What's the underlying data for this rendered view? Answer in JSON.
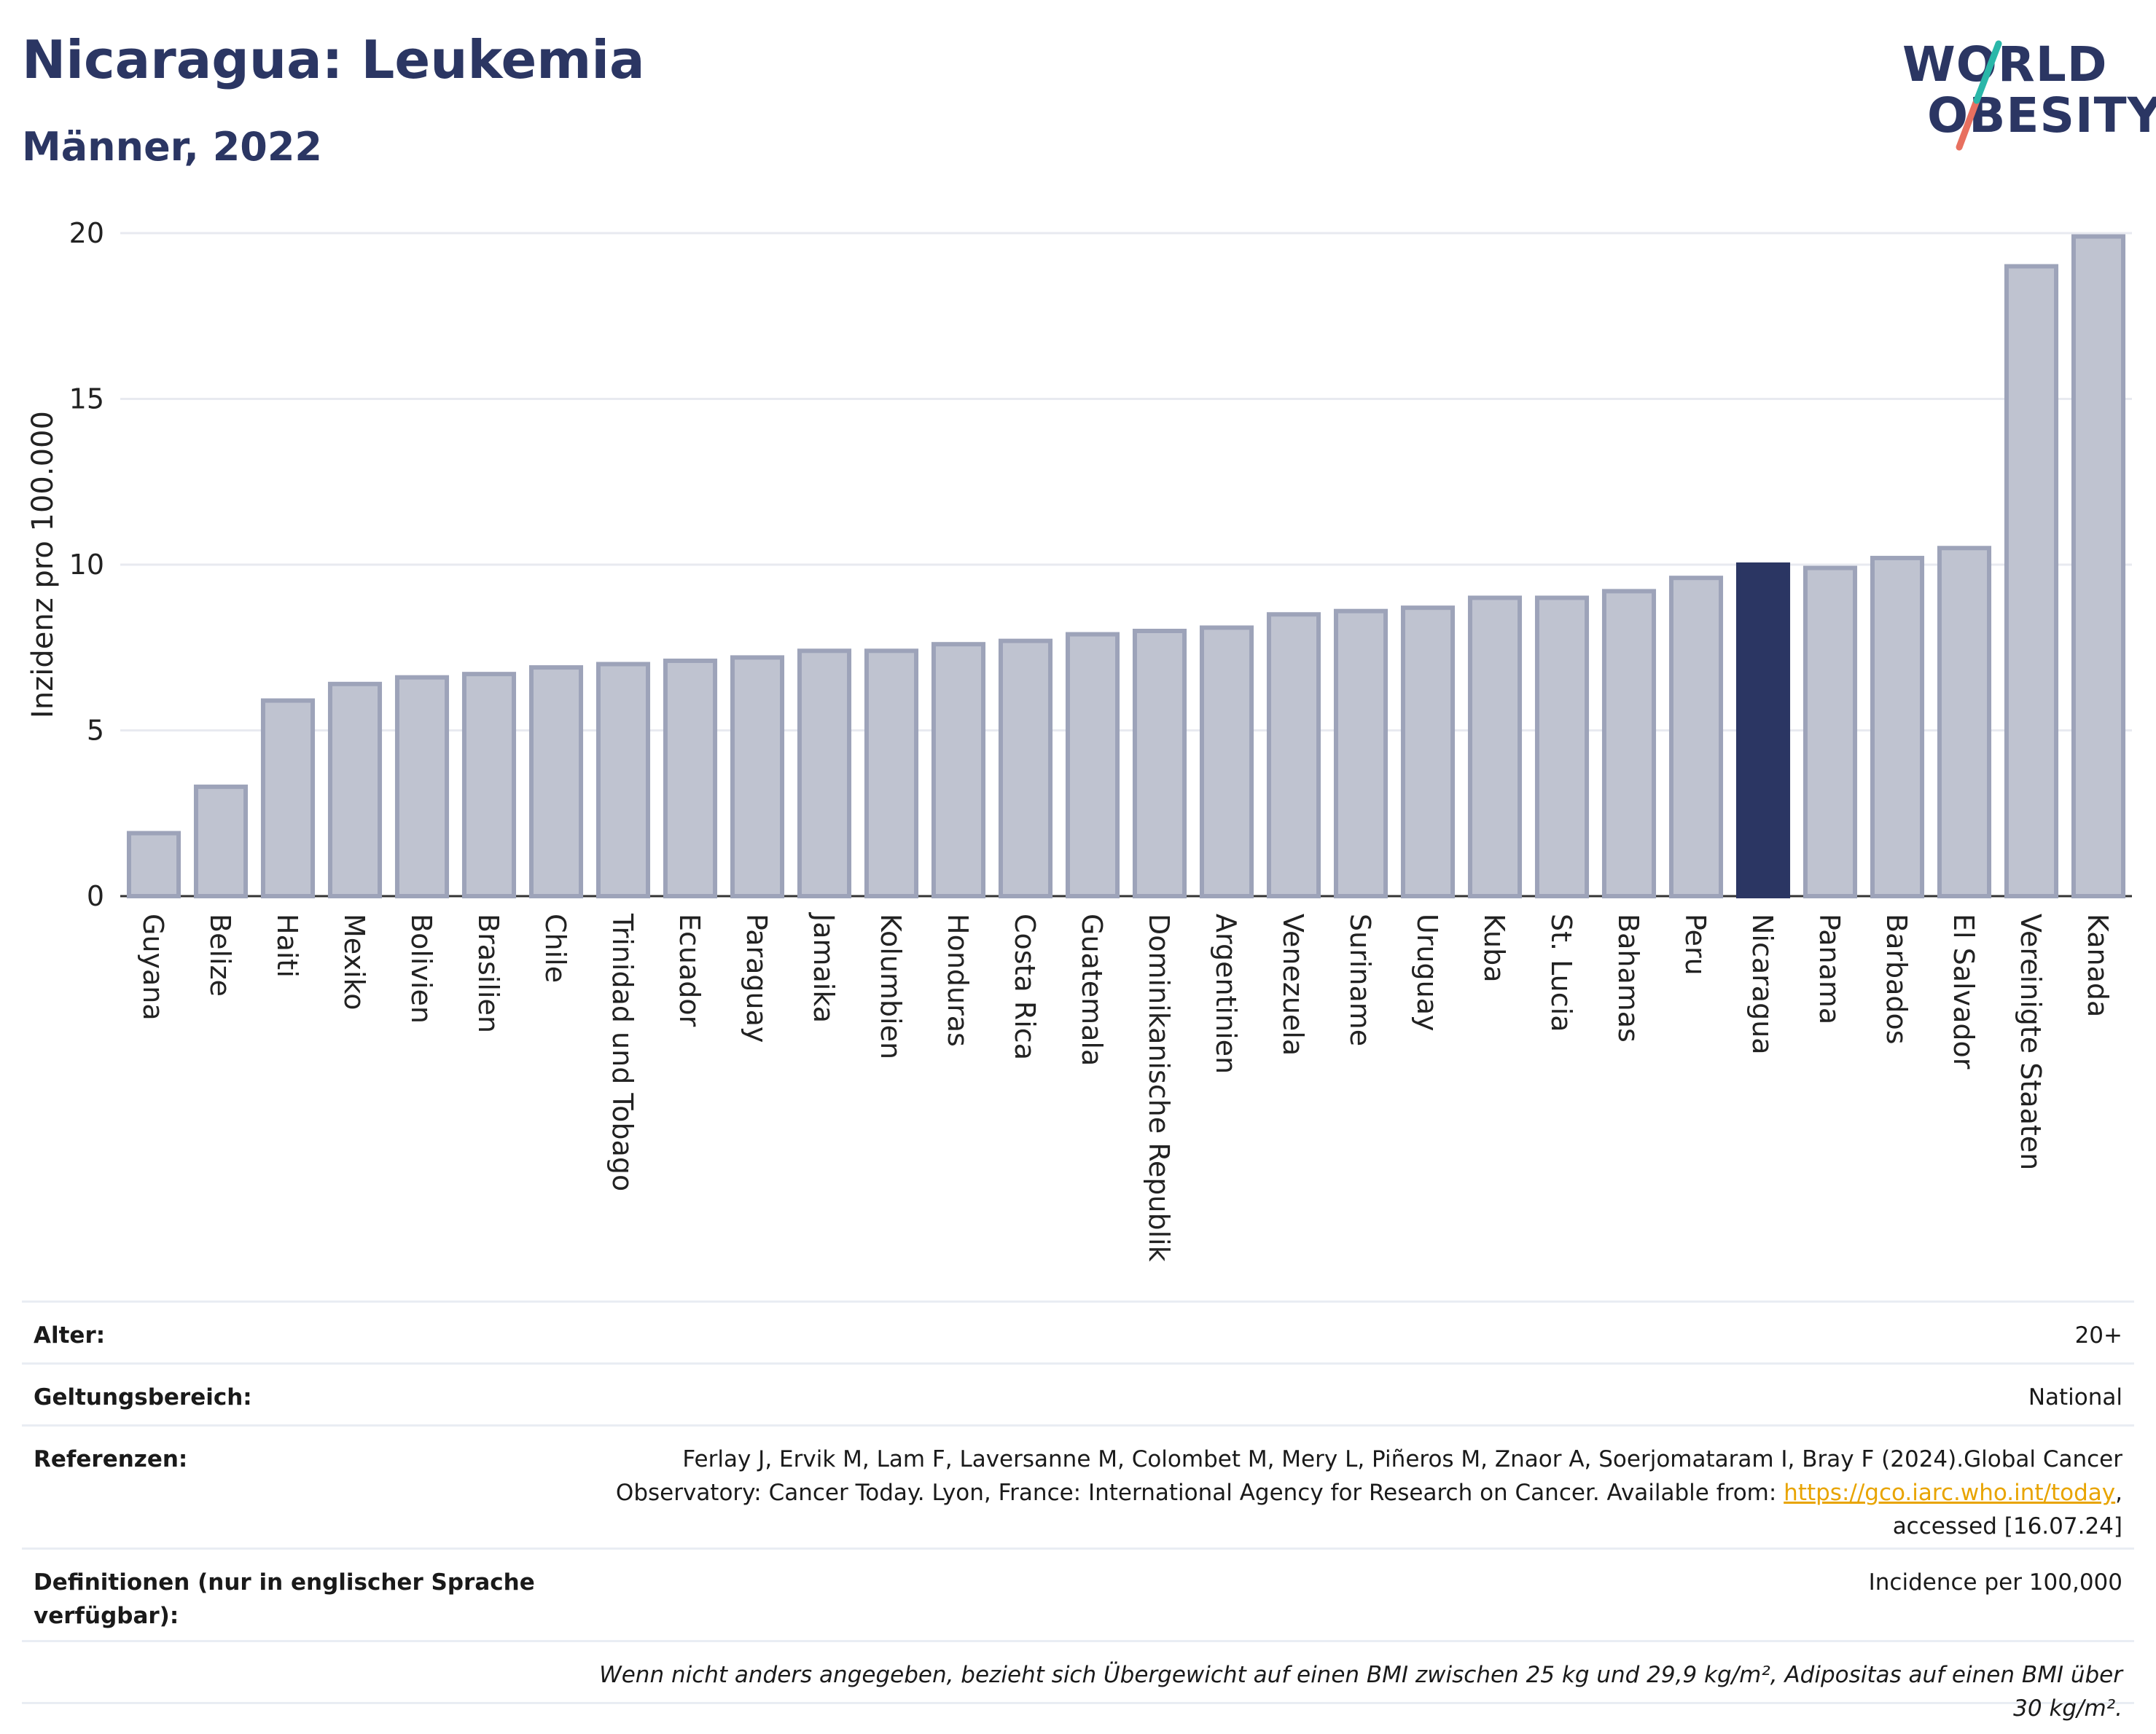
{
  "title": "Nicaragua: Leukemia",
  "subtitle": "Männer, 2022",
  "logo": {
    "line1": "WORLD",
    "line2": "OBESITY"
  },
  "colors": {
    "bar": "#bfc3d0",
    "bar_border": "#9da3b9",
    "highlight": "#2b3663",
    "grid": "#e8eaf0",
    "title": "#2b3663"
  },
  "chart_data": {
    "type": "bar",
    "ylabel": "Inzidenz pro 100.000",
    "xlabel": "",
    "ylim": [
      0,
      20
    ],
    "yticks": [
      0,
      5,
      10,
      15,
      20
    ],
    "grid": true,
    "highlight": "Nicaragua",
    "categories": [
      "Guyana",
      "Belize",
      "Haiti",
      "Mexiko",
      "Bolivien",
      "Brasilien",
      "Chile",
      "Trinidad und Tobago",
      "Ecuador",
      "Paraguay",
      "Jamaika",
      "Kolumbien",
      "Honduras",
      "Costa Rica",
      "Guatemala",
      "Dominikanische Republik",
      "Argentinien",
      "Venezuela",
      "Suriname",
      "Uruguay",
      "Kuba",
      "St. Lucia",
      "Bahamas",
      "Peru",
      "Nicaragua",
      "Panama",
      "Barbados",
      "El Salvador",
      "Vereinigte Staaten",
      "Kanada"
    ],
    "values": [
      1.9,
      3.3,
      5.9,
      6.4,
      6.6,
      6.7,
      6.9,
      7.0,
      7.1,
      7.2,
      7.4,
      7.4,
      7.6,
      7.7,
      7.9,
      8.0,
      8.1,
      8.5,
      8.6,
      8.7,
      9.0,
      9.0,
      9.2,
      9.6,
      10.0,
      9.9,
      10.2,
      10.5,
      19.0,
      19.9
    ]
  },
  "meta": {
    "age_label": "Alter:",
    "age_value": "20+",
    "scope_label": "Geltungsbereich:",
    "scope_value": "National",
    "ref_label": "Referenzen:",
    "ref_text_1": "Ferlay J, Ervik M, Lam F, Laversanne M, Colombet M, Mery L, Piñeros M, Znaor A, Soerjomataram I, Bray F (2024).Global Cancer Observatory: Cancer Today. Lyon, France: International Agency for Research on Cancer. Available from: ",
    "ref_link": "https://gco.iarc.who.int/today",
    "ref_text_2": ", accessed [16.07.24]",
    "def_label": "Definitionen (nur in englischer Sprache verfügbar):",
    "def_value": "Incidence per 100,000",
    "footnote": "Wenn nicht anders angegeben, bezieht sich Übergewicht auf einen BMI zwischen 25 kg und 29,9 kg/m², Adipositas auf einen BMI über 30 kg/m²."
  }
}
